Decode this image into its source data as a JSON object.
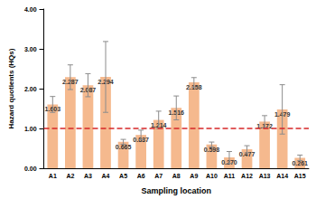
{
  "chart_data": {
    "type": "bar",
    "x_label": "Sampling location",
    "y_label": "Hazard quotients (HQs)",
    "categories": [
      "A1",
      "A2",
      "A3",
      "A4",
      "A5",
      "A6",
      "A7",
      "A8",
      "A9",
      "A10",
      "A11",
      "A12",
      "A13",
      "A14",
      "A15"
    ],
    "values": [
      1.603,
      2.287,
      2.087,
      2.294,
      0.665,
      0.837,
      1.214,
      1.516,
      2.158,
      0.598,
      0.27,
      0.477,
      1.172,
      1.479,
      0.261
    ],
    "value_labels": [
      "1.603",
      "2.287",
      "2.087",
      "2.294",
      "0.665",
      "0.837",
      "1.214",
      "1.516",
      "2.158",
      "0.598",
      "0.270",
      "0.477",
      "1.172",
      "1.479",
      "0.261"
    ],
    "errors": [
      0.2,
      0.31,
      0.29,
      0.89,
      0.06,
      0.12,
      0.22,
      0.3,
      0.12,
      0.06,
      0.15,
      0.09,
      0.15,
      0.62,
      0.07
    ],
    "threshold": 1,
    "color": "#f5b98e",
    "data_labels": true,
    "ylim": [
      0,
      4
    ],
    "yticks": [
      {
        "value": 0,
        "label": "0.00"
      },
      {
        "value": 1,
        "label": "1.00"
      },
      {
        "value": 2,
        "label": "2.00"
      },
      {
        "value": 3,
        "label": "3.00"
      },
      {
        "value": 4,
        "label": "4.00"
      }
    ],
    "grid": false
  }
}
